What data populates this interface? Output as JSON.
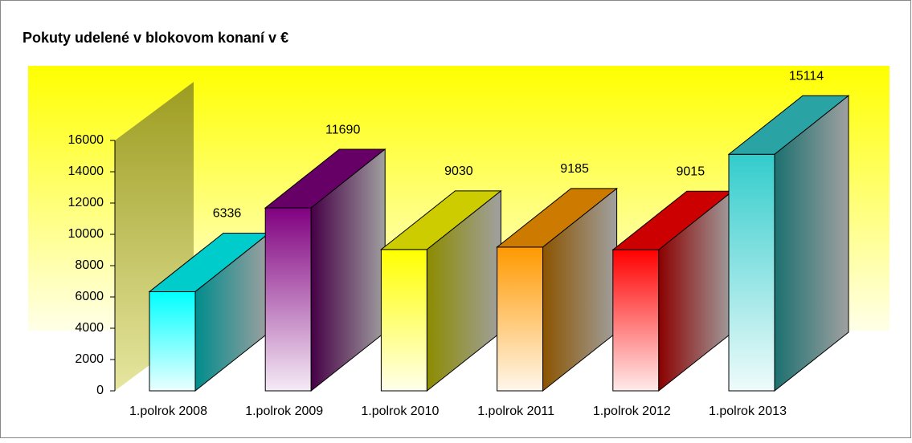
{
  "chart_data": {
    "type": "bar3d",
    "title": "Pokuty udelené v blokovom konaní v €",
    "categories": [
      "1.polrok 2008",
      "1.polrok 2009",
      "1.polrok 2010",
      "1.polrok 2011",
      "1.polrok 2012",
      "1.polrok 2013"
    ],
    "values": [
      6336,
      11690,
      9030,
      9185,
      9015,
      15114
    ],
    "colors": [
      "#00ffff",
      "#800080",
      "#ffff00",
      "#ff9900",
      "#ff0000",
      "#33cccc"
    ],
    "ylim": [
      0,
      16000
    ],
    "yticks": [
      0,
      2000,
      4000,
      6000,
      8000,
      10000,
      12000,
      14000,
      16000
    ]
  }
}
